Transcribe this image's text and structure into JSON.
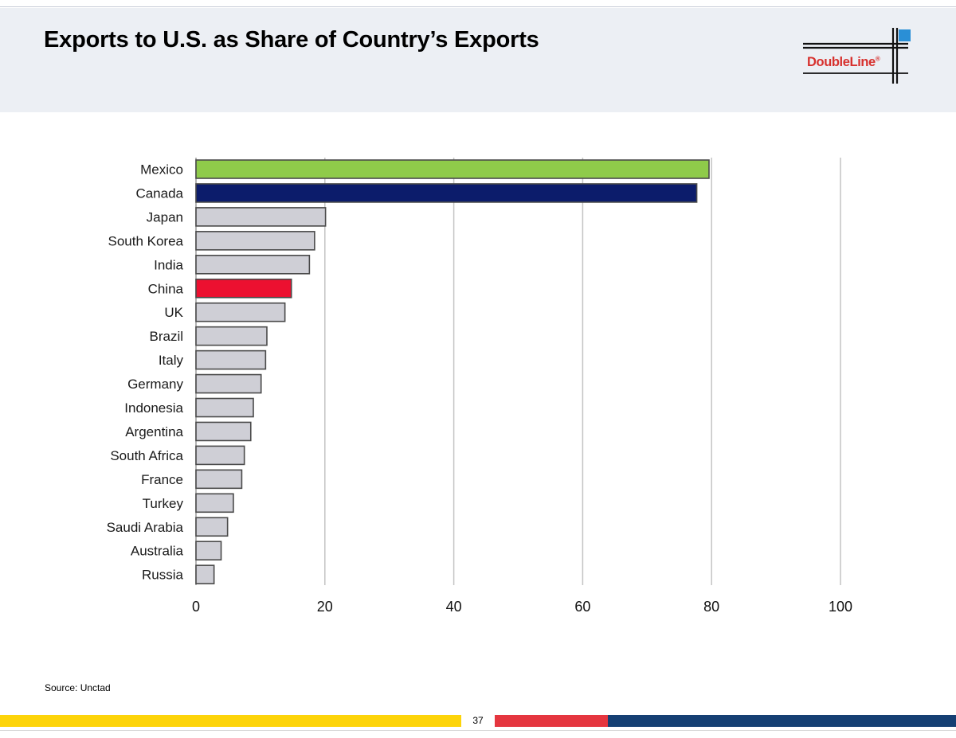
{
  "slide": {
    "title": "Exports to U.S. as Share of Country’s Exports",
    "source": "Source: Unctad",
    "page_number": "37"
  },
  "logo": {
    "text": "DoubleLine",
    "registered_mark": "®",
    "text_color": "#d7312e",
    "accent_color": "#2a8fd6"
  },
  "footer": {
    "colors": [
      "#fdd40a",
      "#e5363f",
      "#153f73"
    ]
  },
  "chart_data": {
    "type": "bar",
    "orientation": "horizontal",
    "title": "",
    "xlabel": "",
    "ylabel": "",
    "xlim": [
      0,
      100
    ],
    "x_ticks": [
      0,
      20,
      40,
      60,
      80,
      100
    ],
    "grid": "vertical",
    "categories": [
      "Mexico",
      "Canada",
      "Japan",
      "South Korea",
      "India",
      "China",
      "UK",
      "Brazil",
      "Italy",
      "Germany",
      "Indonesia",
      "Argentina",
      "South Africa",
      "France",
      "Turkey",
      "Saudi Arabia",
      "Australia",
      "Russia"
    ],
    "values": [
      79.6,
      77.7,
      20.1,
      18.4,
      17.6,
      14.8,
      13.8,
      11.0,
      10.8,
      10.1,
      8.9,
      8.5,
      7.5,
      7.1,
      5.8,
      4.9,
      3.9,
      2.8
    ],
    "colors": {
      "Mexico": "#8fcb4a",
      "Canada": "#0c1c6b",
      "China": "#ec1030",
      "default": "#cfcfd6"
    },
    "bar_outline": "#4a4a4a"
  }
}
